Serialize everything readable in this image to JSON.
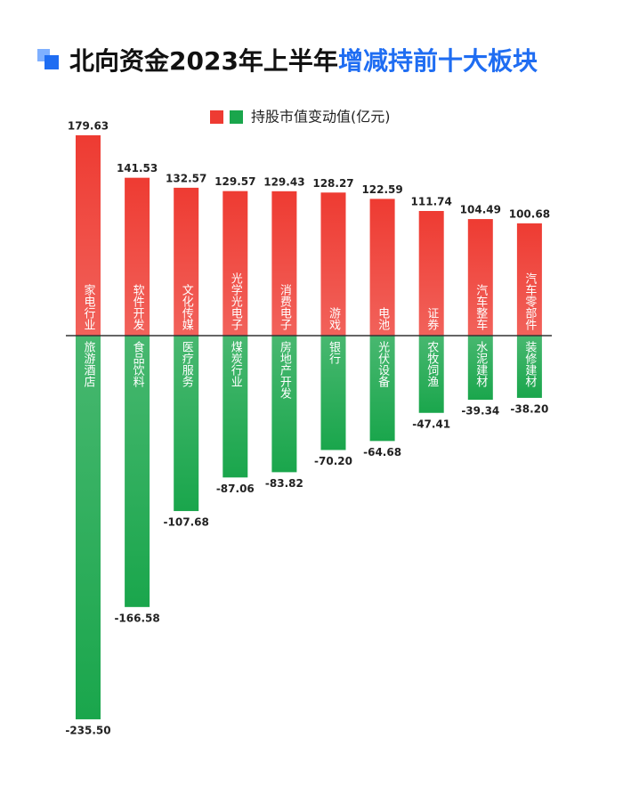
{
  "chart_data": {
    "type": "diverging-bar",
    "title": {
      "part1": "北向资金2023年上半年",
      "part2": "增减持前十大板块"
    },
    "legend_label": "持股市值变动值(亿元)",
    "series": [
      {
        "color": "#ee3b32",
        "categories": [
          "家电行业",
          "软件开发",
          "文化传媒",
          "光学光电子",
          "消费电子",
          "游戏",
          "电池",
          "证券",
          "汽车整车",
          "汽车零部件"
        ],
        "values": [
          179.63,
          141.53,
          132.57,
          129.57,
          129.43,
          128.27,
          122.59,
          111.74,
          104.49,
          100.68
        ]
      },
      {
        "color": "#1aa64c",
        "categories": [
          "旅游酒店",
          "食品饮料",
          "医疗服务",
          "煤炭行业",
          "房地产开发",
          "银行",
          "光伏设备",
          "农牧饲渔",
          "水泥建材",
          "装修建材"
        ],
        "values": [
          -235.5,
          -166.58,
          -107.68,
          -87.06,
          -83.82,
          -70.2,
          -64.68,
          -47.41,
          -39.34,
          -38.2
        ],
        "value_labels": [
          "-235.50",
          "-166.58",
          "-107.68",
          "-87.06",
          "-83.82",
          "-70.20",
          "-64.68",
          "-47.41",
          "-39.34",
          "-38.20"
        ]
      }
    ]
  }
}
